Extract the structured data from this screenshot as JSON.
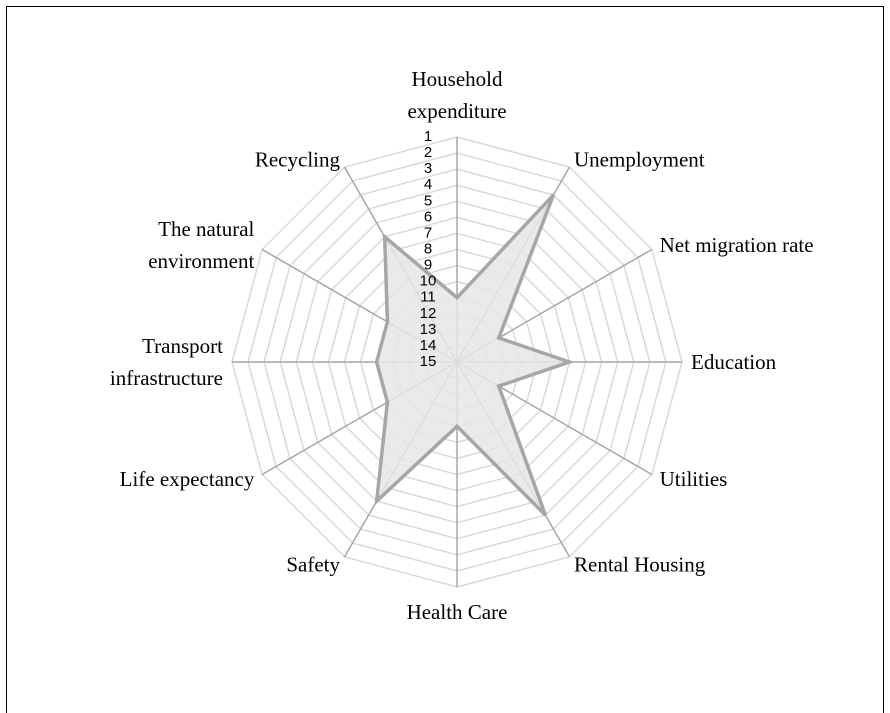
{
  "chart_data": {
    "type": "radar",
    "categories": [
      "Household expenditure",
      "Unemployment",
      "Net migration rate",
      "Education",
      "Utilities",
      "Rental Housing",
      "Health Care",
      "Safety",
      "Life expectancy",
      "Transport infrastructure",
      "The natural environment",
      "Recycling"
    ],
    "values": [
      11,
      3,
      12,
      8,
      12,
      4,
      11,
      5,
      10,
      10,
      10,
      6
    ],
    "color": "#a6a6a6",
    "fill": "#e6e6e6",
    "rlim": [
      1,
      15
    ],
    "reversed": true,
    "rticks": [
      1,
      2,
      3,
      4,
      5,
      6,
      7,
      8,
      9,
      10,
      11,
      12,
      13,
      14,
      15
    ],
    "grid": true
  }
}
